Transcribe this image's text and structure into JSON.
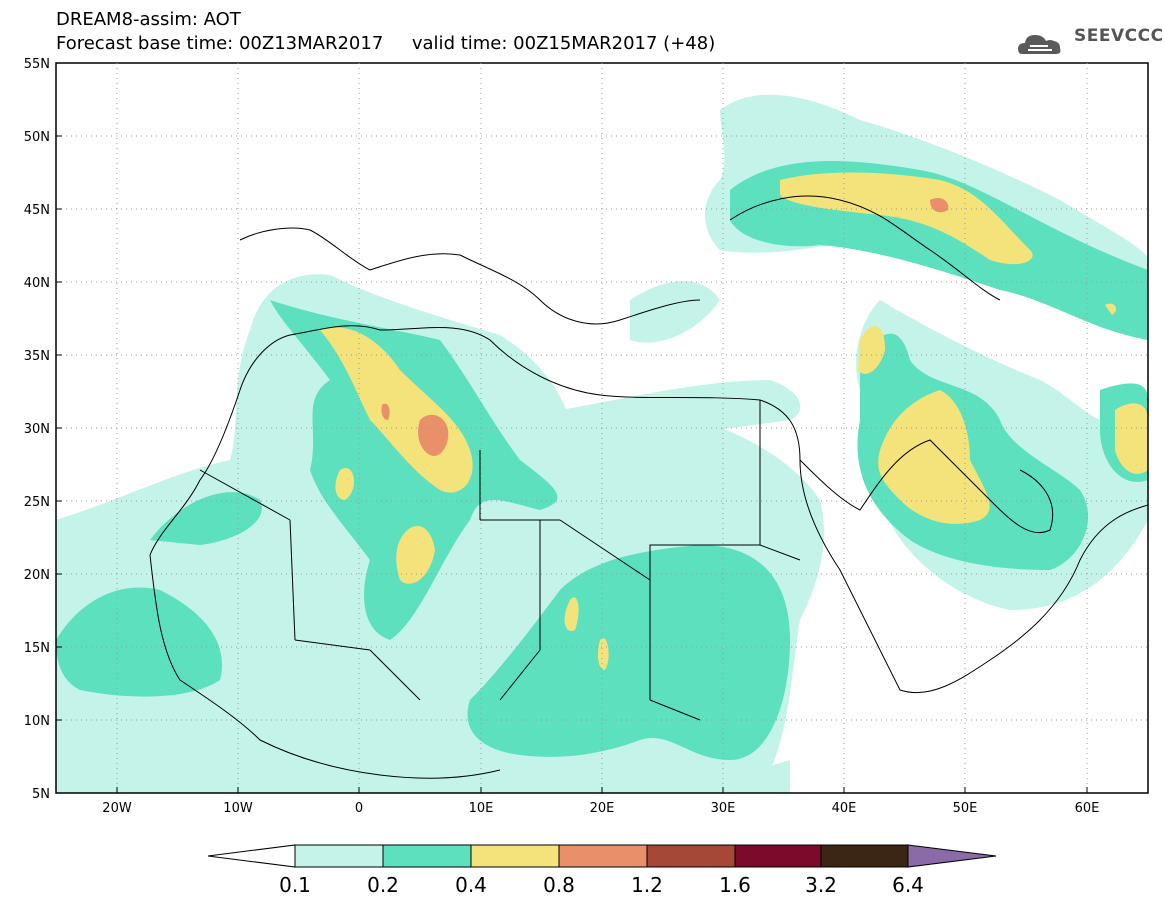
{
  "header": {
    "line1": "DREAM8-assim: AOT",
    "line2": "Forecast base time: 00Z13MAR2017     valid time: 00Z15MAR2017 (+48)"
  },
  "logo": {
    "text": "SEEVCCC",
    "icon": "cloud-icon"
  },
  "map": {
    "variable": "AOT",
    "lon_range": [
      -25,
      65
    ],
    "lat_range": [
      5,
      55
    ],
    "x_ticks": [
      "20W",
      "10W",
      "0",
      "10E",
      "20E",
      "30E",
      "40E",
      "50E",
      "60E"
    ],
    "y_ticks": [
      "55N",
      "50N",
      "45N",
      "40N",
      "35N",
      "30N",
      "25N",
      "20N",
      "15N",
      "10N",
      "5N"
    ],
    "gridlines": "dotted"
  },
  "colorbar": {
    "labels": [
      "0.1",
      "0.2",
      "0.4",
      "0.8",
      "1.2",
      "1.6",
      "3.2",
      "6.4"
    ],
    "colors": [
      "#ffffff",
      "#c4f3ea",
      "#5de0bd",
      "#f4e37a",
      "#e9906b",
      "#a64838",
      "#7c0a2a",
      "#3b2616",
      "#8a6ba8"
    ]
  }
}
